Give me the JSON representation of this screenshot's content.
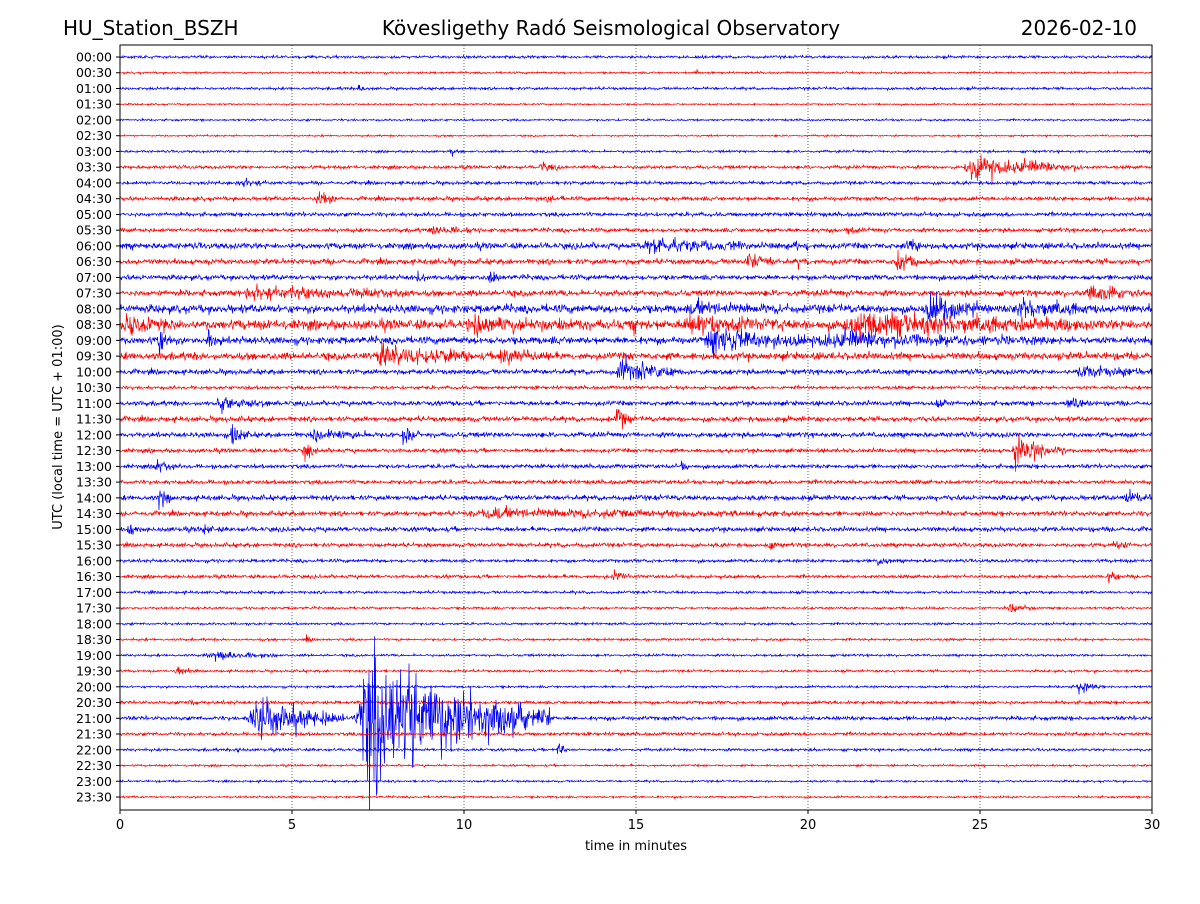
{
  "header": {
    "station": "HU_Station_BSZH",
    "observatory": "Kövesligethy Radó Seismological Observatory",
    "date": "2026-02-10"
  },
  "chart_data": {
    "type": "line",
    "title": "Kövesligethy Radó Seismological Observatory",
    "xlabel": "time in minutes",
    "ylabel": "UTC (local time = UTC + 01:00)",
    "xlim": [
      0,
      30
    ],
    "xticks": [
      0,
      5,
      10,
      15,
      20,
      25,
      30
    ],
    "grid": "vertical dotted at x ticks",
    "colors": [
      "#0000ff",
      "#ff0000"
    ],
    "rows": [
      "00:00",
      "00:30",
      "01:00",
      "01:30",
      "02:00",
      "02:30",
      "03:00",
      "03:30",
      "04:00",
      "04:30",
      "05:00",
      "05:30",
      "06:00",
      "06:30",
      "07:00",
      "07:30",
      "08:00",
      "08:30",
      "09:00",
      "09:30",
      "10:00",
      "10:30",
      "11:00",
      "11:30",
      "12:00",
      "12:30",
      "13:00",
      "13:30",
      "14:00",
      "14:30",
      "15:00",
      "15:30",
      "16:00",
      "16:30",
      "17:00",
      "17:30",
      "18:00",
      "18:30",
      "19:00",
      "19:30",
      "20:00",
      "20:30",
      "21:00",
      "21:30",
      "22:00",
      "22:30",
      "23:00",
      "23:30"
    ],
    "noise_level": [
      0.08,
      0.06,
      0.08,
      0.05,
      0.06,
      0.05,
      0.07,
      0.1,
      0.1,
      0.12,
      0.12,
      0.12,
      0.18,
      0.16,
      0.15,
      0.18,
      0.25,
      0.3,
      0.22,
      0.22,
      0.15,
      0.1,
      0.14,
      0.15,
      0.15,
      0.12,
      0.12,
      0.12,
      0.15,
      0.14,
      0.14,
      0.12,
      0.1,
      0.1,
      0.08,
      0.07,
      0.07,
      0.07,
      0.07,
      0.07,
      0.07,
      0.1,
      0.12,
      0.1,
      0.08,
      0.06,
      0.06,
      0.06
    ],
    "events": [
      {
        "row": "00:30",
        "start": 16.7,
        "end": 16.9,
        "amp": 0.2
      },
      {
        "row": "01:00",
        "start": 6.9,
        "end": 7.3,
        "amp": 0.2
      },
      {
        "row": "03:00",
        "start": 9.6,
        "end": 9.9,
        "amp": 0.15
      },
      {
        "row": "03:30",
        "start": 12.2,
        "end": 12.8,
        "amp": 0.25
      },
      {
        "row": "03:30",
        "start": 24.5,
        "end": 28,
        "amp": 0.7
      },
      {
        "row": "04:00",
        "start": 3.4,
        "end": 4.6,
        "amp": 0.25
      },
      {
        "row": "04:30",
        "start": 5.7,
        "end": 6.3,
        "amp": 0.5
      },
      {
        "row": "04:30",
        "start": 12.4,
        "end": 12.9,
        "amp": 0.2
      },
      {
        "row": "05:30",
        "start": 9.0,
        "end": 10.2,
        "amp": 0.3
      },
      {
        "row": "05:30",
        "start": 21.1,
        "end": 21.5,
        "amp": 0.3
      },
      {
        "row": "06:00",
        "start": 15,
        "end": 20,
        "amp": 0.35
      },
      {
        "row": "06:00",
        "start": 22.8,
        "end": 23.6,
        "amp": 0.3
      },
      {
        "row": "06:30",
        "start": 18.2,
        "end": 19,
        "amp": 0.6
      },
      {
        "row": "06:30",
        "start": 19.7,
        "end": 20,
        "amp": 0.5
      },
      {
        "row": "06:30",
        "start": 22.5,
        "end": 23.5,
        "amp": 0.7
      },
      {
        "row": "07:00",
        "start": 8.6,
        "end": 9.0,
        "amp": 0.3
      },
      {
        "row": "07:00",
        "start": 10.7,
        "end": 11.1,
        "amp": 0.5
      },
      {
        "row": "07:30",
        "start": 3.5,
        "end": 8.5,
        "amp": 0.35
      },
      {
        "row": "07:30",
        "start": 28.1,
        "end": 29.6,
        "amp": 0.5
      },
      {
        "row": "08:00",
        "start": 23.4,
        "end": 25.2,
        "amp": 0.8
      },
      {
        "row": "08:00",
        "start": 26,
        "end": 28.5,
        "amp": 0.45
      },
      {
        "row": "08:00",
        "start": 16.5,
        "end": 19.5,
        "amp": 0.3
      },
      {
        "row": "08:30",
        "start": 0,
        "end": 1.6,
        "amp": 0.5
      },
      {
        "row": "08:30",
        "start": 10,
        "end": 13.5,
        "amp": 0.4
      },
      {
        "row": "08:30",
        "start": 14.9,
        "end": 15.3,
        "amp": 0.6
      },
      {
        "row": "08:30",
        "start": 16.3,
        "end": 19.3,
        "amp": 0.45
      },
      {
        "row": "08:30",
        "start": 21,
        "end": 28,
        "amp": 0.7
      },
      {
        "row": "09:00",
        "start": 1.1,
        "end": 1.5,
        "amp": 0.7
      },
      {
        "row": "09:00",
        "start": 2.5,
        "end": 3.0,
        "amp": 0.5
      },
      {
        "row": "09:00",
        "start": 17,
        "end": 20,
        "amp": 0.8
      },
      {
        "row": "09:00",
        "start": 20,
        "end": 27,
        "amp": 0.35
      },
      {
        "row": "09:30",
        "start": 7.4,
        "end": 10.3,
        "amp": 0.8
      },
      {
        "row": "09:30",
        "start": 11,
        "end": 12.6,
        "amp": 0.5
      },
      {
        "row": "10:00",
        "start": 14.4,
        "end": 16.6,
        "amp": 0.7
      },
      {
        "row": "10:00",
        "start": 27.8,
        "end": 30,
        "amp": 0.35
      },
      {
        "row": "11:00",
        "start": 2.8,
        "end": 4.6,
        "amp": 0.3
      },
      {
        "row": "11:00",
        "start": 23.7,
        "end": 24.1,
        "amp": 0.4
      },
      {
        "row": "11:00",
        "start": 27.5,
        "end": 28.4,
        "amp": 0.3
      },
      {
        "row": "11:30",
        "start": 14.4,
        "end": 14.9,
        "amp": 0.7
      },
      {
        "row": "12:00",
        "start": 3.2,
        "end": 3.8,
        "amp": 0.7
      },
      {
        "row": "12:00",
        "start": 5.5,
        "end": 7.5,
        "amp": 0.3
      },
      {
        "row": "12:00",
        "start": 8.2,
        "end": 8.7,
        "amp": 0.7
      },
      {
        "row": "12:30",
        "start": 5.3,
        "end": 5.8,
        "amp": 0.5
      },
      {
        "row": "12:30",
        "start": 25.9,
        "end": 27.5,
        "amp": 0.9
      },
      {
        "row": "13:00",
        "start": 1.0,
        "end": 1.6,
        "amp": 0.35
      },
      {
        "row": "13:00",
        "start": 16.3,
        "end": 16.6,
        "amp": 0.35
      },
      {
        "row": "14:00",
        "start": 1.1,
        "end": 1.5,
        "amp": 0.6
      },
      {
        "row": "14:00",
        "start": 29.2,
        "end": 30,
        "amp": 0.5
      },
      {
        "row": "14:30",
        "start": 10,
        "end": 20,
        "amp": 0.25
      },
      {
        "row": "15:00",
        "start": 0.2,
        "end": 0.6,
        "amp": 0.45
      },
      {
        "row": "15:00",
        "start": 2.4,
        "end": 2.7,
        "amp": 0.4
      },
      {
        "row": "15:30",
        "start": 18.8,
        "end": 19.2,
        "amp": 0.35
      },
      {
        "row": "15:30",
        "start": 28.8,
        "end": 29.5,
        "amp": 0.3
      },
      {
        "row": "16:00",
        "start": 22,
        "end": 22.4,
        "amp": 0.35
      },
      {
        "row": "16:30",
        "start": 14.3,
        "end": 14.9,
        "amp": 0.3
      },
      {
        "row": "16:30",
        "start": 28.7,
        "end": 29.1,
        "amp": 0.35
      },
      {
        "row": "17:30",
        "start": 25.8,
        "end": 26.6,
        "amp": 0.25
      },
      {
        "row": "18:30",
        "start": 5.4,
        "end": 5.7,
        "amp": 0.3
      },
      {
        "row": "19:00",
        "start": 2.5,
        "end": 4.6,
        "amp": 0.3
      },
      {
        "row": "19:30",
        "start": 1.6,
        "end": 2.1,
        "amp": 0.4
      },
      {
        "row": "20:00",
        "start": 27.8,
        "end": 28.6,
        "amp": 0.35
      },
      {
        "row": "20:30",
        "start": 2.0,
        "end": 2.3,
        "amp": 0.3
      },
      {
        "row": "21:00",
        "start": 3.7,
        "end": 6.5,
        "amp": 1.3
      },
      {
        "row": "21:00",
        "start": 6.8,
        "end": 12.5,
        "amp": 4.5
      },
      {
        "row": "22:00",
        "start": 3.4,
        "end": 3.6,
        "amp": 0.3
      },
      {
        "row": "22:00",
        "start": 12.7,
        "end": 13.0,
        "amp": 0.5
      }
    ]
  }
}
